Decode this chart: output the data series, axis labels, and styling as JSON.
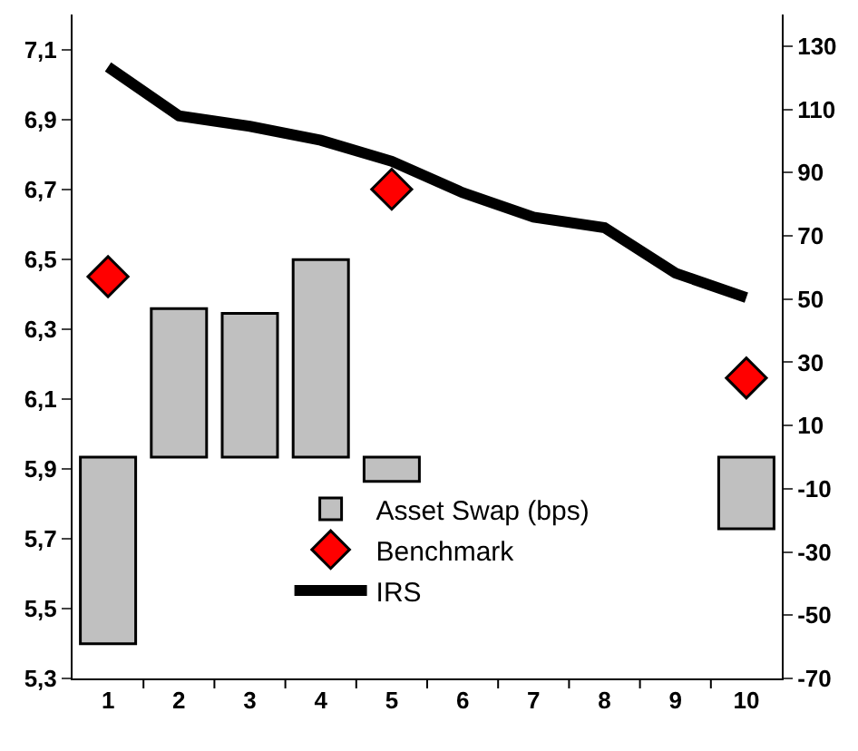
{
  "chart_data": {
    "type": "bar",
    "categories": [
      "1",
      "2",
      "3",
      "4",
      "5",
      "6",
      "7",
      "8",
      "9",
      "10"
    ],
    "series": [
      {
        "name": "Asset Swap (bps)",
        "axis": "y2",
        "color": "#c0c0c0",
        "values": [
          -59,
          47,
          45.5,
          62.5,
          -7.7,
          null,
          null,
          null,
          null,
          -22.7
        ]
      },
      {
        "name": "Benchmark",
        "type": "scatter",
        "marker": "diamond",
        "color": "#ff0000",
        "values": [
          6.45,
          null,
          null,
          null,
          6.7,
          null,
          null,
          null,
          null,
          6.16
        ]
      },
      {
        "name": "IRS",
        "type": "line",
        "marker": "none",
        "line_style": "solid",
        "color": "#000000",
        "values": [
          7.05,
          6.91,
          6.88,
          6.84,
          6.78,
          6.69,
          6.62,
          6.59,
          6.46,
          6.39
        ]
      }
    ],
    "ylim": [
      5.3,
      7.2
    ],
    "yticks": [
      {
        "value": 5.3,
        "label": "5,3"
      },
      {
        "value": 5.5,
        "label": "5,5"
      },
      {
        "value": 5.7,
        "label": "5,7"
      },
      {
        "value": 5.9,
        "label": "5,9"
      },
      {
        "value": 6.1,
        "label": "6,1"
      },
      {
        "value": 6.3,
        "label": "6,3"
      },
      {
        "value": 6.5,
        "label": "6,5"
      },
      {
        "value": 6.7,
        "label": "6,7"
      },
      {
        "value": 6.9,
        "label": "6,9"
      },
      {
        "value": 7.1,
        "label": "7,1"
      }
    ],
    "y2lim": [
      -70,
      140
    ],
    "y2ticks": [
      -70,
      -50,
      -30,
      -10,
      10,
      30,
      50,
      70,
      90,
      110,
      130
    ],
    "grid": false,
    "legend": "bottom"
  }
}
